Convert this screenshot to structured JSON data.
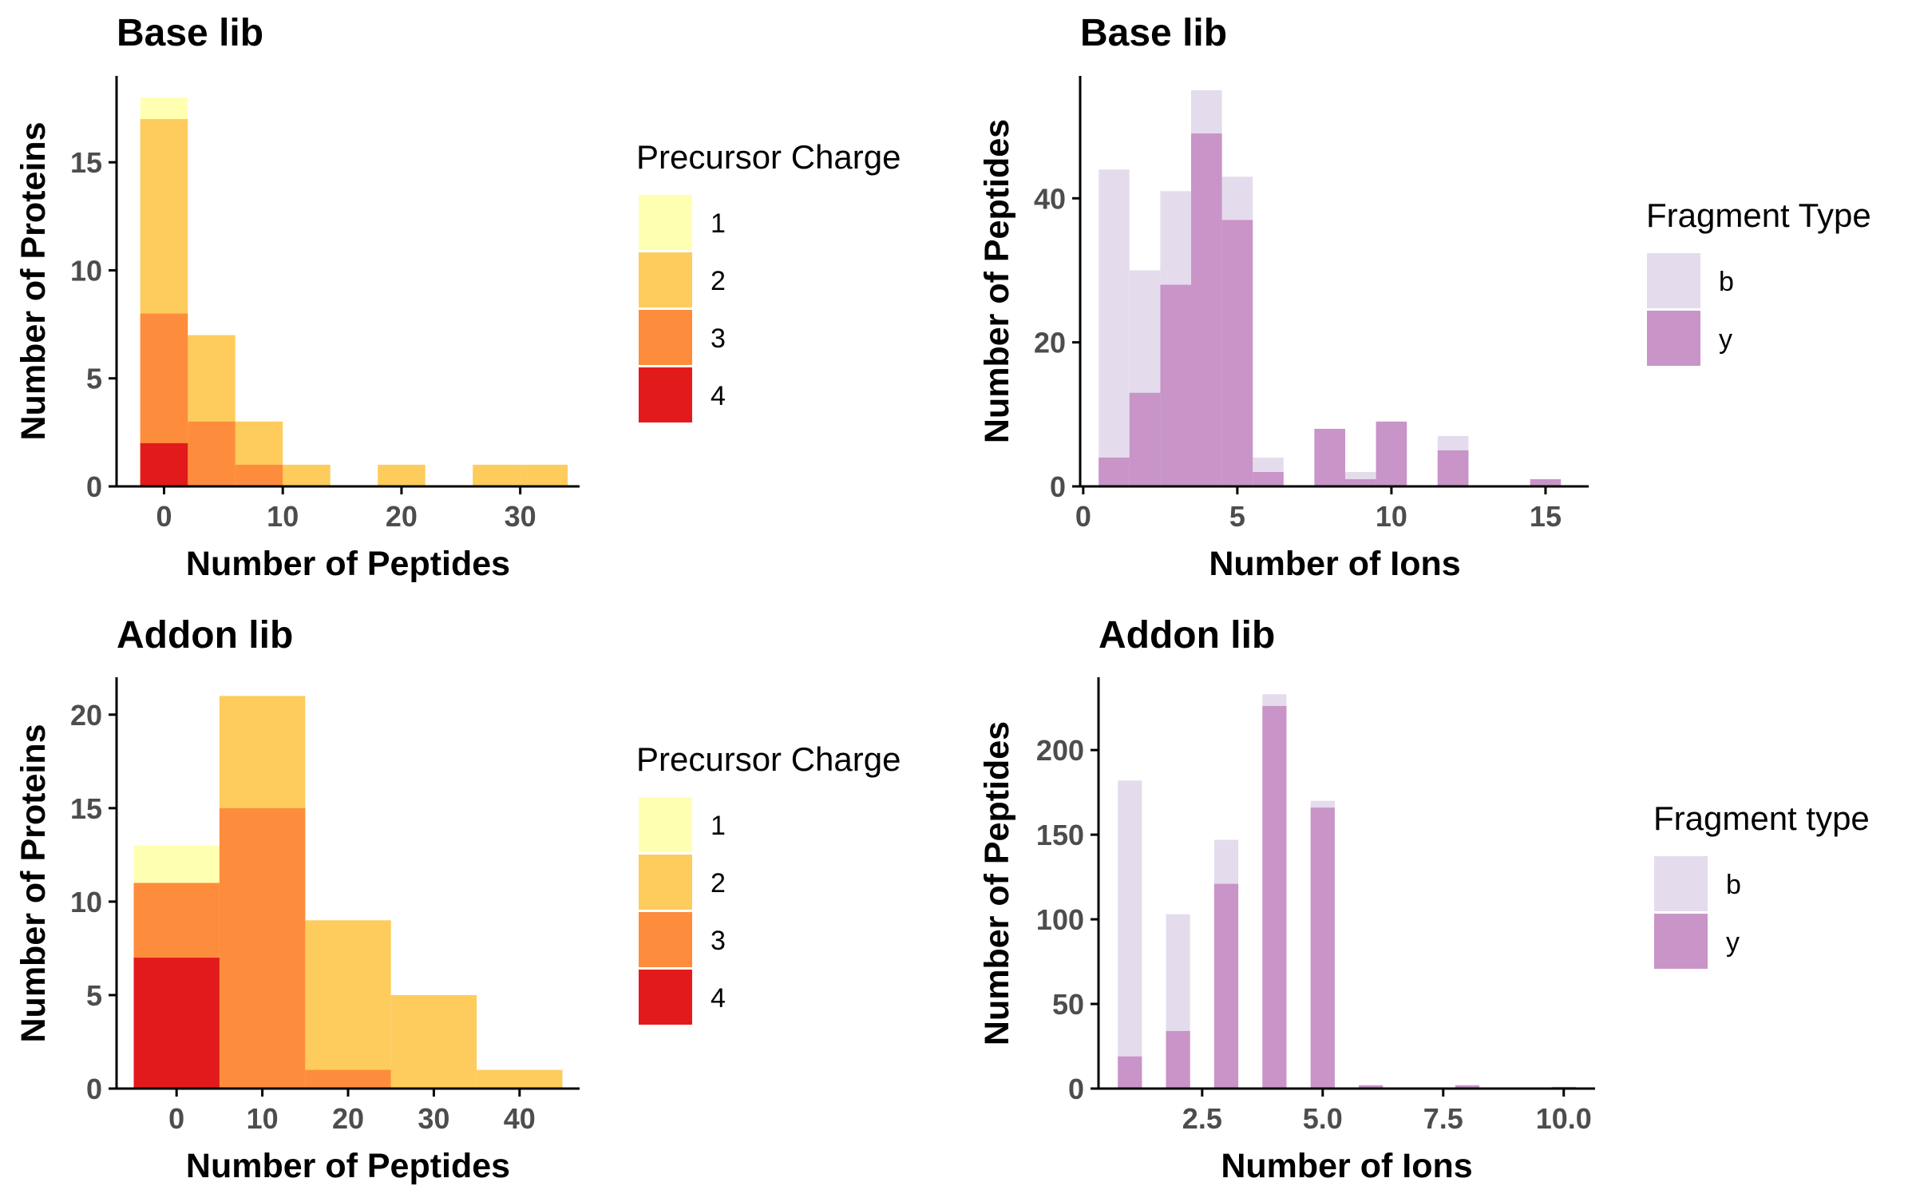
{
  "colors": {
    "charge_1": "#FFFFB2",
    "charge_2": "#FECC5C",
    "charge_3": "#FD8D3C",
    "charge_4": "#E31A1C",
    "frag_b": "#E4DCEC",
    "frag_y": "#C994C7",
    "axis": "#000000",
    "tick_text": "#4D4D4D"
  },
  "chart_data": [
    {
      "id": "tl",
      "type": "bar",
      "stacking": "overlay",
      "title": "Base lib",
      "xlabel": "Number of Peptides",
      "ylabel": "Number of Proteins",
      "xlim": [
        -4,
        35
      ],
      "ylim": [
        0,
        19
      ],
      "xticks": [
        0,
        10,
        20,
        30
      ],
      "xtick_labels": [
        "0",
        "10",
        "20",
        "30"
      ],
      "yticks": [
        0,
        5,
        10,
        15
      ],
      "ytick_labels": [
        "0",
        "5",
        "10",
        "15"
      ],
      "bin_width": 4,
      "legend": {
        "title": "Precursor Charge",
        "position": "right",
        "labels": [
          "1",
          "2",
          "3",
          "4"
        ],
        "color_keys": [
          "charge_1",
          "charge_2",
          "charge_3",
          "charge_4"
        ]
      },
      "series": [
        {
          "name": "1",
          "color_key": "charge_1",
          "x": [
            0
          ],
          "values": [
            18
          ]
        },
        {
          "name": "2",
          "color_key": "charge_2",
          "x": [
            0,
            4,
            8,
            12,
            20,
            28,
            32
          ],
          "values": [
            17,
            7,
            3,
            1,
            1,
            1,
            1
          ]
        },
        {
          "name": "3",
          "color_key": "charge_3",
          "x": [
            0,
            4,
            8
          ],
          "values": [
            8,
            3,
            1
          ]
        },
        {
          "name": "4",
          "color_key": "charge_4",
          "x": [
            0
          ],
          "values": [
            2
          ]
        }
      ]
    },
    {
      "id": "tr",
      "type": "bar",
      "stacking": "overlay",
      "title": "Base lib",
      "xlabel": "Number of Ions",
      "ylabel": "Number of Peptides",
      "xlim": [
        -0.1,
        16.4
      ],
      "ylim": [
        0,
        57
      ],
      "xticks": [
        0,
        5,
        10,
        15
      ],
      "xtick_labels": [
        "0",
        "5",
        "10",
        "15"
      ],
      "yticks": [
        0,
        20,
        40
      ],
      "ytick_labels": [
        "0",
        "20",
        "40"
      ],
      "bin_width": 1,
      "legend": {
        "title": "Fragment Type",
        "position": "right",
        "labels": [
          "b",
          "y"
        ],
        "color_keys": [
          "frag_b",
          "frag_y"
        ]
      },
      "series": [
        {
          "name": "b",
          "color_key": "frag_b",
          "x": [
            1,
            2,
            3,
            4,
            5,
            6,
            9,
            12
          ],
          "values": [
            44,
            30,
            41,
            55,
            43,
            4,
            2,
            7
          ]
        },
        {
          "name": "y",
          "color_key": "frag_y",
          "x": [
            1,
            2,
            3,
            4,
            5,
            6,
            8,
            9,
            10,
            12,
            15
          ],
          "values": [
            4,
            13,
            28,
            49,
            37,
            2,
            8,
            1,
            9,
            5,
            1
          ]
        }
      ]
    },
    {
      "id": "bl",
      "type": "bar",
      "stacking": "overlay",
      "title": "Addon lib",
      "xlabel": "Number of Peptides",
      "ylabel": "Number of Proteins",
      "xlim": [
        -7,
        47
      ],
      "ylim": [
        0,
        22
      ],
      "xticks": [
        0,
        10,
        20,
        30,
        40
      ],
      "xtick_labels": [
        "0",
        "10",
        "20",
        "30",
        "40"
      ],
      "yticks": [
        0,
        5,
        10,
        15,
        20
      ],
      "ytick_labels": [
        "0",
        "5",
        "10",
        "15",
        "20"
      ],
      "bin_width": 10,
      "legend": {
        "title": "Precursor Charge",
        "position": "right",
        "labels": [
          "1",
          "2",
          "3",
          "4"
        ],
        "color_keys": [
          "charge_1",
          "charge_2",
          "charge_3",
          "charge_4"
        ]
      },
      "series": [
        {
          "name": "1",
          "color_key": "charge_1",
          "x": [
            0
          ],
          "values": [
            13
          ]
        },
        {
          "name": "2",
          "color_key": "charge_2",
          "x": [
            10,
            20,
            30,
            40
          ],
          "values": [
            21,
            9,
            5,
            1
          ]
        },
        {
          "name": "3",
          "color_key": "charge_3",
          "x": [
            0,
            10,
            20
          ],
          "values": [
            11,
            15,
            1
          ]
        },
        {
          "name": "4",
          "color_key": "charge_4",
          "x": [
            0
          ],
          "values": [
            7
          ]
        }
      ]
    },
    {
      "id": "br",
      "type": "bar",
      "stacking": "overlay",
      "title": "Addon lib",
      "xlabel": "Number of Ions",
      "ylabel": "Number of Peptides",
      "xlim": [
        0.35,
        10.65
      ],
      "ylim": [
        0,
        243
      ],
      "xticks": [
        2.5,
        5.0,
        7.5,
        10.0
      ],
      "xtick_labels": [
        "2.5",
        "5.0",
        "7.5",
        "10.0"
      ],
      "yticks": [
        0,
        50,
        100,
        150,
        200
      ],
      "ytick_labels": [
        "0",
        "50",
        "100",
        "150",
        "200"
      ],
      "bin_width": 0.5,
      "legend": {
        "title": "Fragment type",
        "position": "right",
        "labels": [
          "b",
          "y"
        ],
        "color_keys": [
          "frag_b",
          "frag_y"
        ]
      },
      "series": [
        {
          "name": "b",
          "color_key": "frag_b",
          "x": [
            1,
            2,
            3,
            4,
            5
          ],
          "values": [
            182,
            103,
            147,
            233,
            170
          ]
        },
        {
          "name": "y",
          "color_key": "frag_y",
          "x": [
            1,
            2,
            3,
            4,
            5,
            6,
            8,
            10
          ],
          "values": [
            19,
            34,
            121,
            226,
            166,
            2,
            2,
            1
          ]
        }
      ]
    }
  ]
}
